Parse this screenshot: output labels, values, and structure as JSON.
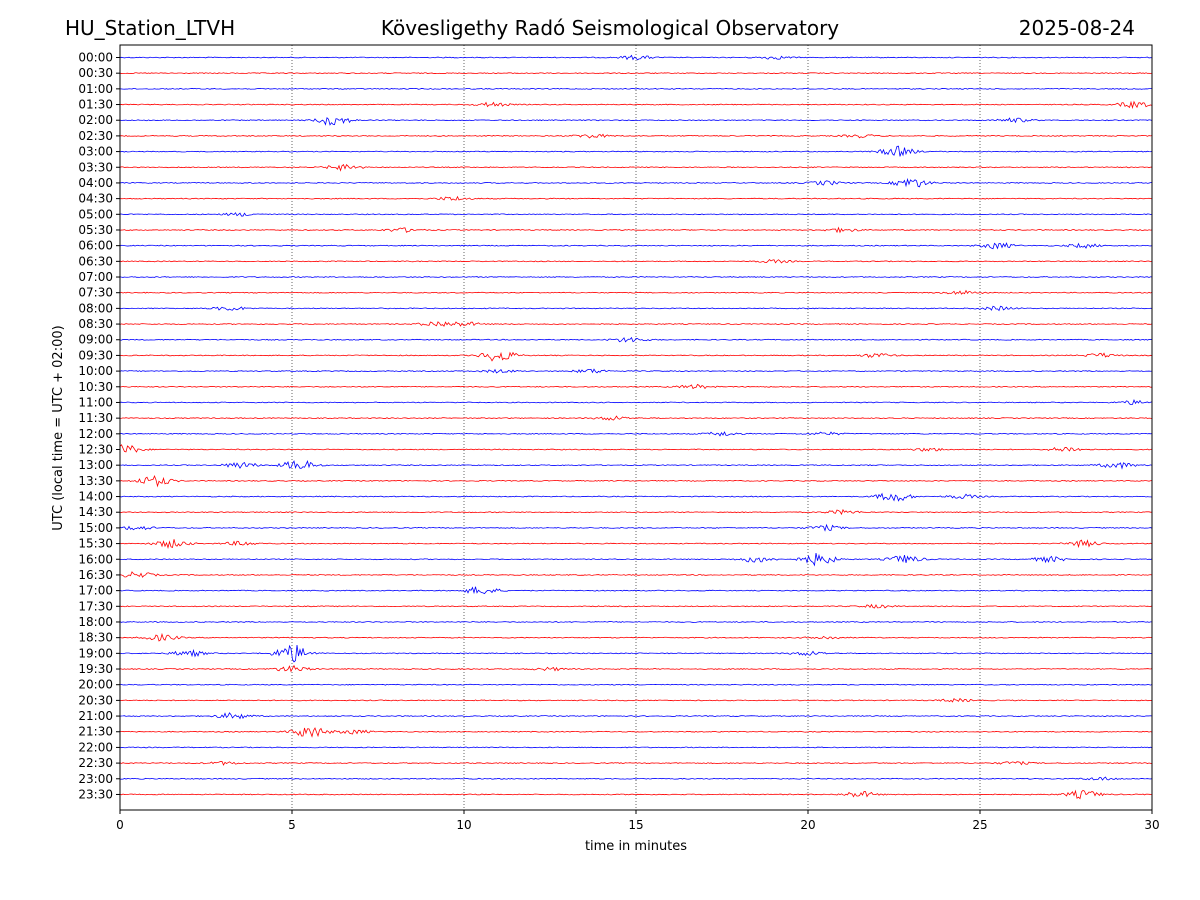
{
  "header": {
    "station": "HU_Station_LTVH",
    "observatory": "Kövesligethy Radó Seismological Observatory",
    "date": "2025-08-24"
  },
  "chart_data": {
    "type": "line",
    "xlabel": "time in minutes",
    "ylabel": "UTC (local time = UTC + 02:00)",
    "xlim": [
      0,
      30
    ],
    "x_ticks": [
      "0",
      "5",
      "10",
      "15",
      "20",
      "25",
      "30"
    ],
    "x_tick_values": [
      0,
      5,
      10,
      15,
      20,
      25,
      30
    ],
    "vertical_gridlines": [
      5,
      10,
      15,
      20,
      25
    ],
    "grid": "dotted vertical",
    "trace_colors": {
      "hour": "#0000ff",
      "half_hour": "#ff0000"
    },
    "rows": [
      {
        "label": "00:00",
        "color": "#0000ff",
        "bursts": [
          {
            "t": 15.0,
            "a": 2
          },
          {
            "t": 19.0,
            "a": 1.5
          }
        ]
      },
      {
        "label": "00:30",
        "color": "#ff0000",
        "bursts": []
      },
      {
        "label": "01:00",
        "color": "#0000ff",
        "bursts": []
      },
      {
        "label": "01:30",
        "color": "#ff0000",
        "bursts": [
          {
            "t": 10.8,
            "a": 2
          },
          {
            "t": 29.5,
            "a": 3
          }
        ]
      },
      {
        "label": "02:00",
        "color": "#0000ff",
        "bursts": [
          {
            "t": 6.2,
            "a": 5
          },
          {
            "t": 26.0,
            "a": 2
          }
        ]
      },
      {
        "label": "02:30",
        "color": "#ff0000",
        "bursts": [
          {
            "t": 13.7,
            "a": 2
          },
          {
            "t": 21.5,
            "a": 1.5
          }
        ]
      },
      {
        "label": "03:00",
        "color": "#0000ff",
        "bursts": [
          {
            "t": 22.6,
            "a": 5
          }
        ]
      },
      {
        "label": "03:30",
        "color": "#ff0000",
        "bursts": [
          {
            "t": 6.5,
            "a": 3
          }
        ]
      },
      {
        "label": "04:00",
        "color": "#0000ff",
        "bursts": [
          {
            "t": 23.0,
            "a": 5
          },
          {
            "t": 20.5,
            "a": 2
          }
        ]
      },
      {
        "label": "04:30",
        "color": "#ff0000",
        "bursts": [
          {
            "t": 9.7,
            "a": 2
          }
        ]
      },
      {
        "label": "05:00",
        "color": "#0000ff",
        "bursts": [
          {
            "t": 3.5,
            "a": 1.5
          }
        ]
      },
      {
        "label": "05:30",
        "color": "#ff0000",
        "bursts": [
          {
            "t": 8.2,
            "a": 2
          },
          {
            "t": 21.0,
            "a": 2
          }
        ]
      },
      {
        "label": "06:00",
        "color": "#0000ff",
        "bursts": [
          {
            "t": 25.5,
            "a": 3
          },
          {
            "t": 28.0,
            "a": 2
          }
        ]
      },
      {
        "label": "06:30",
        "color": "#ff0000",
        "bursts": [
          {
            "t": 19.0,
            "a": 1.5
          }
        ]
      },
      {
        "label": "07:00",
        "color": "#0000ff",
        "bursts": []
      },
      {
        "label": "07:30",
        "color": "#ff0000",
        "bursts": [
          {
            "t": 24.5,
            "a": 2
          }
        ]
      },
      {
        "label": "08:00",
        "color": "#0000ff",
        "bursts": [
          {
            "t": 3.2,
            "a": 2
          },
          {
            "t": 25.5,
            "a": 2
          }
        ]
      },
      {
        "label": "08:30",
        "color": "#ff0000",
        "bursts": [
          {
            "t": 9.2,
            "a": 2.5
          },
          {
            "t": 10.0,
            "a": 2
          }
        ]
      },
      {
        "label": "09:00",
        "color": "#0000ff",
        "bursts": [
          {
            "t": 14.8,
            "a": 2.5
          }
        ]
      },
      {
        "label": "09:30",
        "color": "#ff0000",
        "bursts": [
          {
            "t": 11.0,
            "a": 6
          },
          {
            "t": 22.0,
            "a": 2
          },
          {
            "t": 28.5,
            "a": 2
          }
        ]
      },
      {
        "label": "10:00",
        "color": "#0000ff",
        "bursts": [
          {
            "t": 13.7,
            "a": 2
          },
          {
            "t": 11.0,
            "a": 1.5
          }
        ]
      },
      {
        "label": "10:30",
        "color": "#ff0000",
        "bursts": [
          {
            "t": 16.7,
            "a": 2
          }
        ]
      },
      {
        "label": "11:00",
        "color": "#0000ff",
        "bursts": [
          {
            "t": 29.5,
            "a": 2
          }
        ]
      },
      {
        "label": "11:30",
        "color": "#ff0000",
        "bursts": [
          {
            "t": 14.3,
            "a": 2
          }
        ]
      },
      {
        "label": "12:00",
        "color": "#0000ff",
        "bursts": [
          {
            "t": 17.5,
            "a": 2
          },
          {
            "t": 20.5,
            "a": 1.5
          }
        ]
      },
      {
        "label": "12:30",
        "color": "#ff0000",
        "bursts": [
          {
            "t": 0.1,
            "a": 5
          },
          {
            "t": 27.5,
            "a": 2.5
          },
          {
            "t": 23.5,
            "a": 1.5
          }
        ]
      },
      {
        "label": "13:00",
        "color": "#0000ff",
        "bursts": [
          {
            "t": 5.2,
            "a": 5
          },
          {
            "t": 3.5,
            "a": 3
          },
          {
            "t": 29.0,
            "a": 3
          }
        ]
      },
      {
        "label": "13:30",
        "color": "#ff0000",
        "bursts": [
          {
            "t": 1.0,
            "a": 5
          }
        ]
      },
      {
        "label": "14:00",
        "color": "#0000ff",
        "bursts": [
          {
            "t": 22.5,
            "a": 5
          },
          {
            "t": 24.5,
            "a": 2
          }
        ]
      },
      {
        "label": "14:30",
        "color": "#ff0000",
        "bursts": [
          {
            "t": 21.0,
            "a": 2
          }
        ]
      },
      {
        "label": "15:00",
        "color": "#0000ff",
        "bursts": [
          {
            "t": 0.5,
            "a": 2
          },
          {
            "t": 20.5,
            "a": 2.5
          }
        ]
      },
      {
        "label": "15:30",
        "color": "#ff0000",
        "bursts": [
          {
            "t": 1.5,
            "a": 4
          },
          {
            "t": 3.5,
            "a": 2
          },
          {
            "t": 28.0,
            "a": 3
          }
        ]
      },
      {
        "label": "16:00",
        "color": "#0000ff",
        "bursts": [
          {
            "t": 18.5,
            "a": 3
          },
          {
            "t": 20.3,
            "a": 6
          },
          {
            "t": 22.8,
            "a": 4
          },
          {
            "t": 27.0,
            "a": 2.5
          }
        ]
      },
      {
        "label": "16:30",
        "color": "#ff0000",
        "bursts": [
          {
            "t": 0.5,
            "a": 3
          }
        ]
      },
      {
        "label": "17:00",
        "color": "#0000ff",
        "bursts": [
          {
            "t": 10.5,
            "a": 4
          }
        ]
      },
      {
        "label": "17:30",
        "color": "#ff0000",
        "bursts": [
          {
            "t": 22.0,
            "a": 1.5
          }
        ]
      },
      {
        "label": "18:00",
        "color": "#0000ff",
        "bursts": []
      },
      {
        "label": "18:30",
        "color": "#ff0000",
        "bursts": [
          {
            "t": 1.2,
            "a": 3
          },
          {
            "t": 20.5,
            "a": 1.5
          }
        ]
      },
      {
        "label": "19:00",
        "color": "#0000ff",
        "bursts": [
          {
            "t": 5.0,
            "a": 9
          },
          {
            "t": 2.0,
            "a": 3
          },
          {
            "t": 20.0,
            "a": 2
          }
        ]
      },
      {
        "label": "19:30",
        "color": "#ff0000",
        "bursts": [
          {
            "t": 5.0,
            "a": 3
          },
          {
            "t": 12.5,
            "a": 1.5
          }
        ]
      },
      {
        "label": "20:00",
        "color": "#0000ff",
        "bursts": []
      },
      {
        "label": "20:30",
        "color": "#ff0000",
        "bursts": [
          {
            "t": 24.3,
            "a": 1.5
          }
        ]
      },
      {
        "label": "21:00",
        "color": "#0000ff",
        "bursts": [
          {
            "t": 3.3,
            "a": 3
          }
        ]
      },
      {
        "label": "21:30",
        "color": "#ff0000",
        "bursts": [
          {
            "t": 5.5,
            "a": 6
          },
          {
            "t": 6.8,
            "a": 2
          }
        ]
      },
      {
        "label": "22:00",
        "color": "#0000ff",
        "bursts": []
      },
      {
        "label": "22:30",
        "color": "#ff0000",
        "bursts": [
          {
            "t": 3.0,
            "a": 1.5
          },
          {
            "t": 26.0,
            "a": 1.5
          }
        ]
      },
      {
        "label": "23:00",
        "color": "#0000ff",
        "bursts": [
          {
            "t": 28.5,
            "a": 1.5
          }
        ]
      },
      {
        "label": "23:30",
        "color": "#ff0000",
        "bursts": [
          {
            "t": 28.0,
            "a": 4
          },
          {
            "t": 21.5,
            "a": 3
          }
        ]
      }
    ]
  }
}
